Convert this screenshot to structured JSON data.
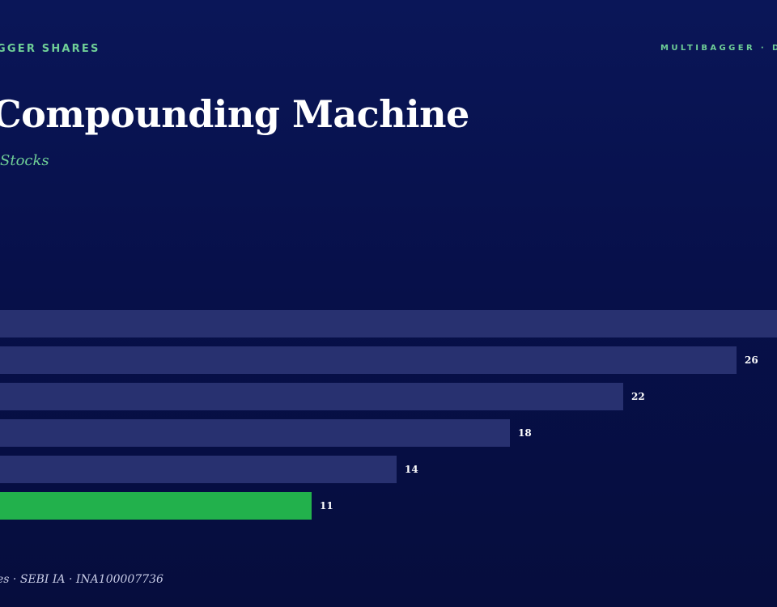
{
  "header": {
    "kicker_left": "GGER SHARES",
    "kicker_right": "MULTIBAGGER · D"
  },
  "title": "Compounding Machine",
  "subtitle": "Stocks",
  "footer": "es · SEBI IA · INA100007736",
  "colors": {
    "bar_default": "#283170",
    "bar_highlight": "#22b14c",
    "accent": "#6fcf97"
  },
  "chart_data": {
    "type": "bar",
    "orientation": "horizontal",
    "values": [
      30,
      26,
      22,
      18,
      14,
      11
    ],
    "labels": [
      "",
      "26",
      "22",
      "18",
      "14",
      "11"
    ],
    "highlight_index": 5,
    "xlim": [
      0,
      30
    ]
  }
}
